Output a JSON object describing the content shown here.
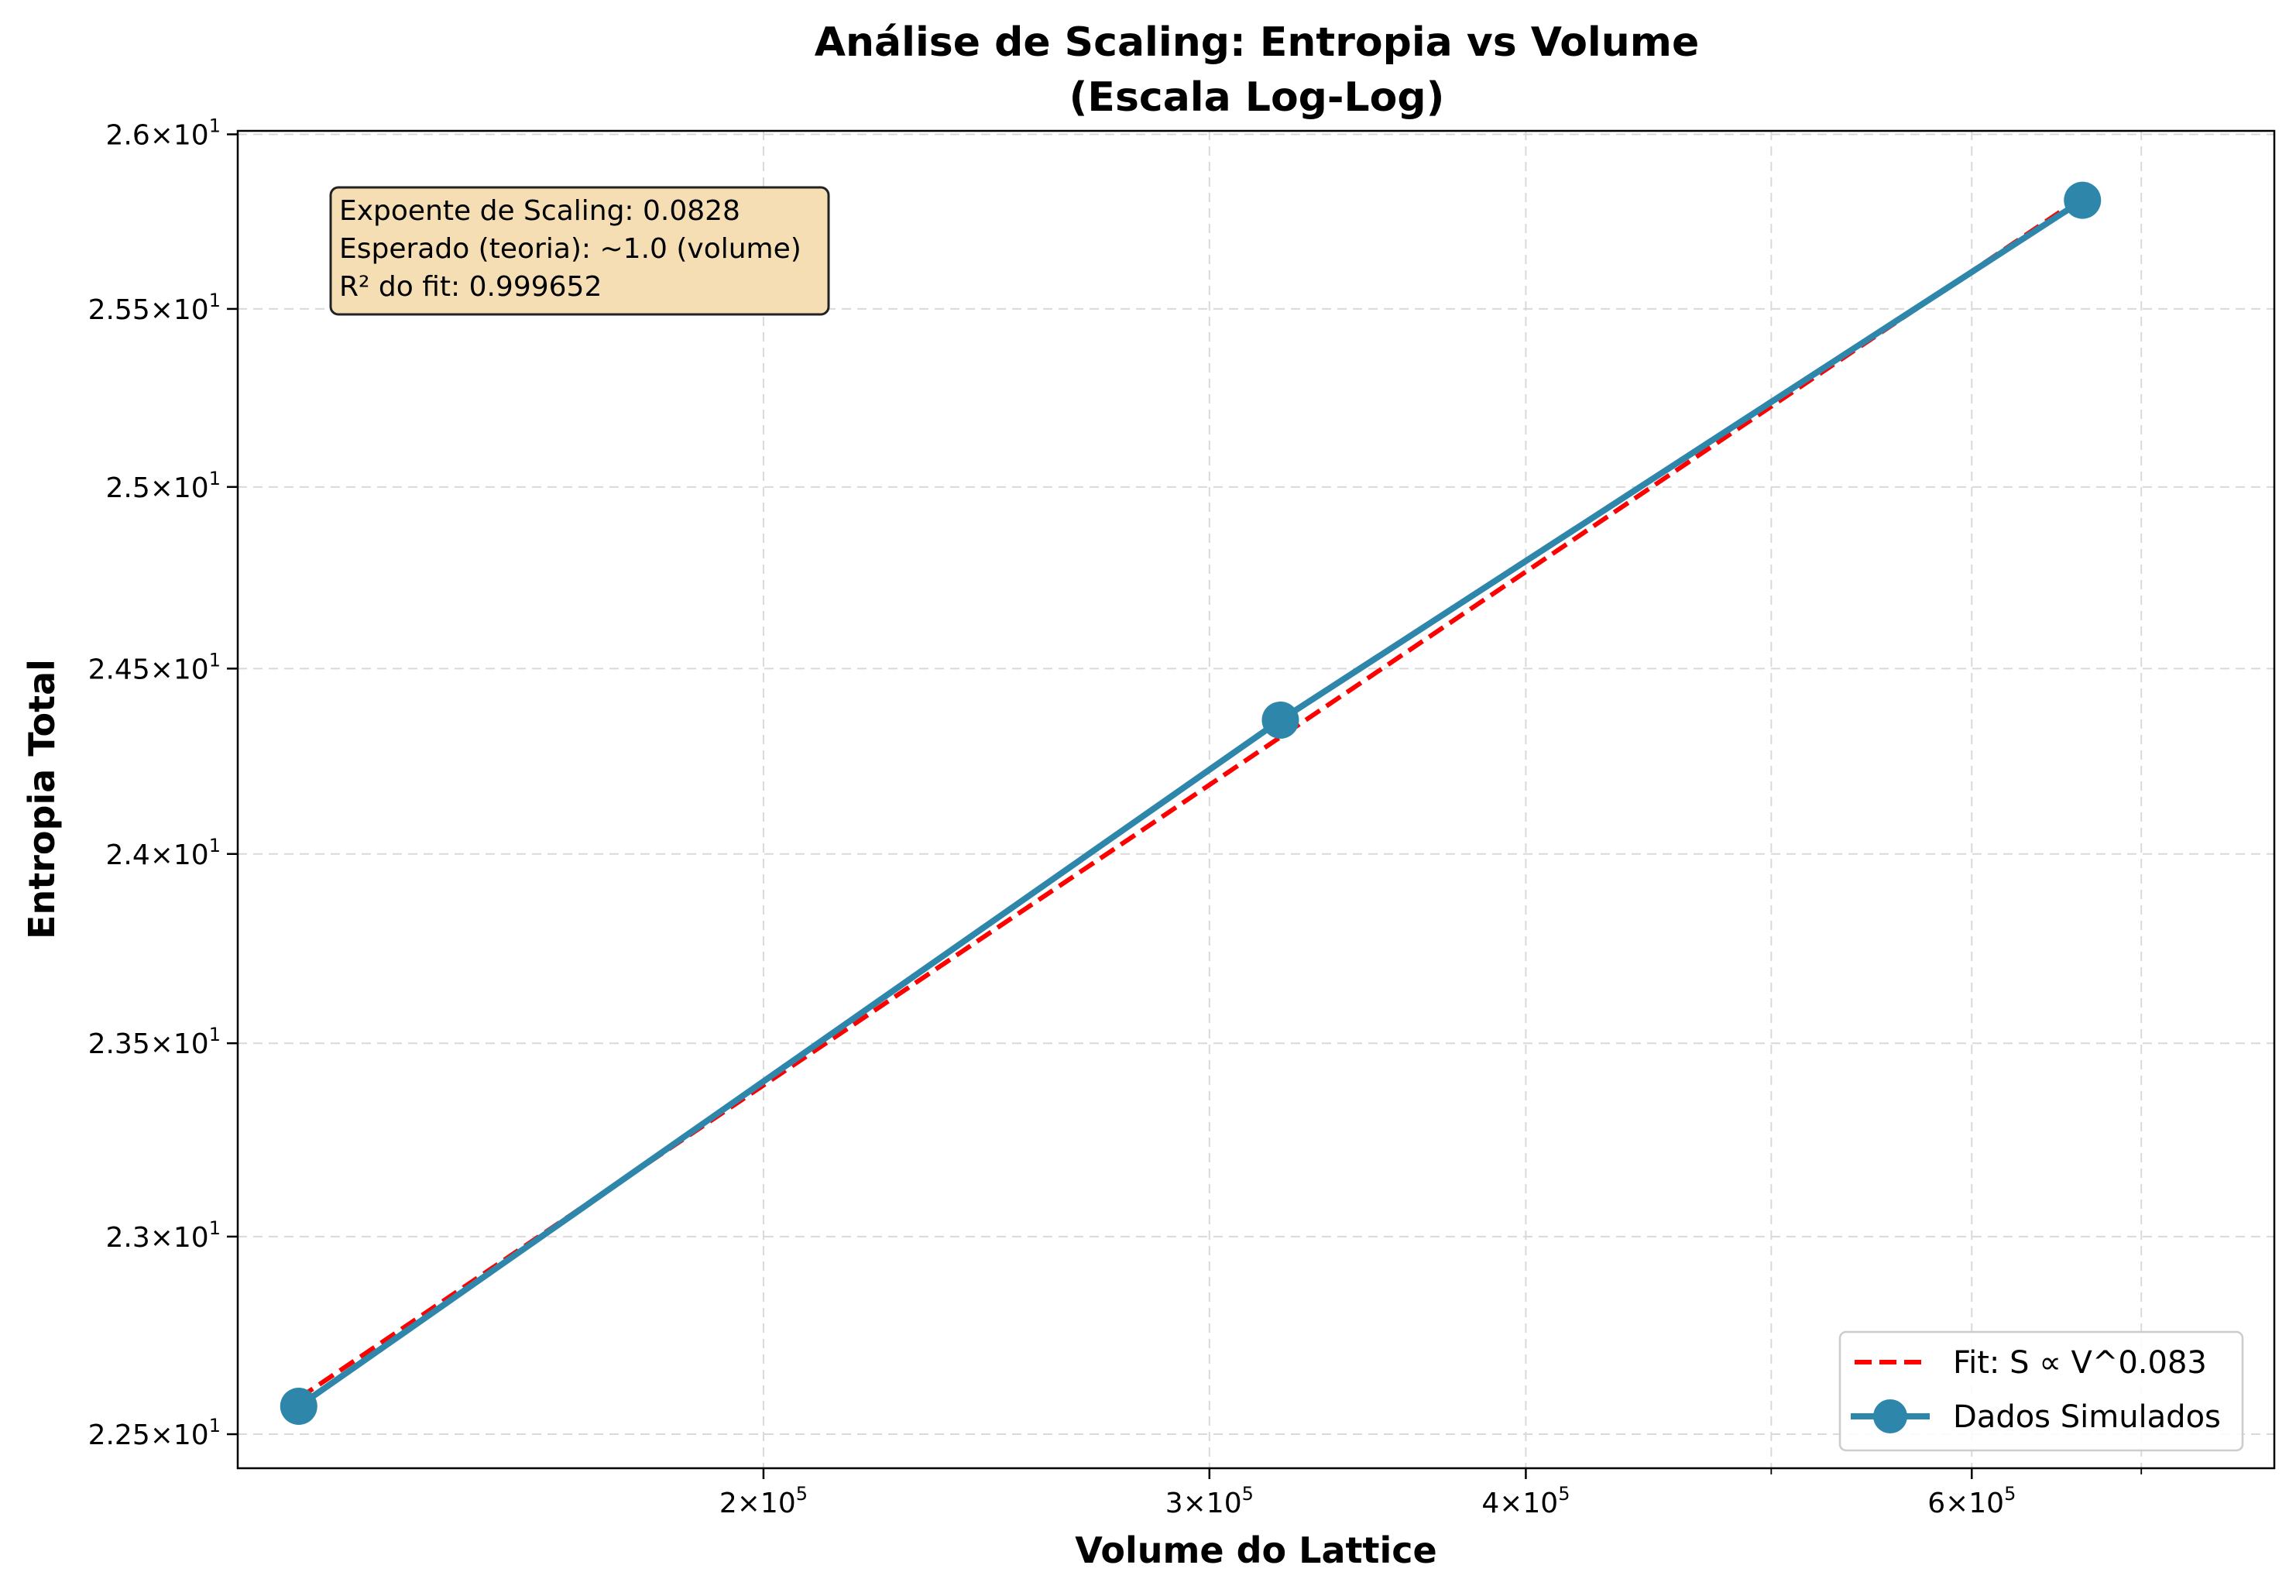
{
  "chart_data": {
    "type": "line",
    "title": "Análise de Scaling: Entropia vs Volume",
    "subtitle": "(Escala Log-Log)",
    "xlabel": "Volume do Lattice",
    "ylabel": "Entropia Total",
    "xscale": "log",
    "yscale": "log",
    "xlim": [
      124000,
      790000
    ],
    "ylim": [
      22.415,
      26.01
    ],
    "grid": true,
    "x_ticks": [
      {
        "value": 200000,
        "mantissa": "2",
        "base": "10",
        "exp": "5"
      },
      {
        "value": 300000,
        "mantissa": "3",
        "base": "10",
        "exp": "5"
      },
      {
        "value": 400000,
        "mantissa": "4",
        "base": "10",
        "exp": "5"
      },
      {
        "value": 600000,
        "mantissa": "6",
        "base": "10",
        "exp": "5"
      }
    ],
    "x_minor_ticks": [
      500000,
      700000
    ],
    "y_ticks": [
      {
        "value": 22.5,
        "mantissa": "2.25",
        "base": "10",
        "exp": "1"
      },
      {
        "value": 23.0,
        "mantissa": "2.3",
        "base": "10",
        "exp": "1"
      },
      {
        "value": 23.5,
        "mantissa": "2.35",
        "base": "10",
        "exp": "1"
      },
      {
        "value": 24.0,
        "mantissa": "2.4",
        "base": "10",
        "exp": "1"
      },
      {
        "value": 24.5,
        "mantissa": "2.45",
        "base": "10",
        "exp": "1"
      },
      {
        "value": 25.0,
        "mantissa": "2.5",
        "base": "10",
        "exp": "1"
      },
      {
        "value": 25.5,
        "mantissa": "2.55",
        "base": "10",
        "exp": "1"
      },
      {
        "value": 26.0,
        "mantissa": "2.6",
        "base": "10",
        "exp": "1"
      }
    ],
    "series": [
      {
        "name": "Dados Simulados",
        "color": "#2e86ab",
        "style": "solid-with-markers",
        "x": [
          131072,
          320000,
          663552
        ],
        "y": [
          22.57,
          24.36,
          25.81
        ]
      },
      {
        "name": "Fit: S ∝ V^0.083",
        "color": "#ff0000",
        "style": "dashed",
        "x": [
          131072,
          663552
        ],
        "y": [
          22.59,
          25.82
        ]
      }
    ],
    "annotation": {
      "lines": [
        "Expoente de Scaling: 0.0828",
        "Esperado (teoria): ~1.0 (volume)",
        "R² do fit: 0.999652"
      ],
      "background": "#f5deb3"
    },
    "legend": {
      "position": "bottom-right",
      "entries": [
        "Fit: S ∝ V^0.083",
        "Dados Simulados"
      ]
    }
  }
}
